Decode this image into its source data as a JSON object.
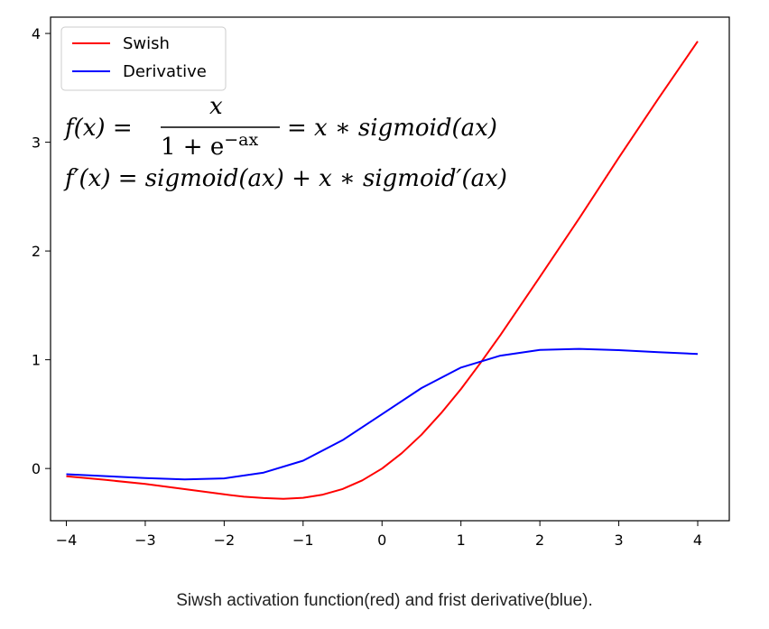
{
  "chart_data": {
    "type": "line",
    "title": "",
    "xlabel": "",
    "ylabel": "",
    "xlim": [
      -4.2,
      4.4
    ],
    "ylim": [
      -0.48,
      4.15
    ],
    "xticks": [
      -4,
      -3,
      -2,
      -1,
      0,
      1,
      2,
      3,
      4
    ],
    "xtick_labels": [
      "−4",
      "−3",
      "−2",
      "−1",
      "0",
      "1",
      "2",
      "3",
      "4"
    ],
    "yticks": [
      0,
      1,
      2,
      3,
      4
    ],
    "ytick_labels": [
      "0",
      "1",
      "2",
      "3",
      "4"
    ],
    "grid": false,
    "legend": "upper-left",
    "series": [
      {
        "name": "Swish",
        "color": "#ff0000",
        "x": [
          -4.0,
          -3.5,
          -3.0,
          -2.5,
          -2.0,
          -1.75,
          -1.5,
          -1.25,
          -1.0,
          -0.75,
          -0.5,
          -0.25,
          0.0,
          0.25,
          0.5,
          0.75,
          1.0,
          1.25,
          1.5,
          2.0,
          2.5,
          3.0,
          3.5,
          4.0
        ],
        "y": [
          -0.072,
          -0.105,
          -0.142,
          -0.19,
          -0.238,
          -0.259,
          -0.272,
          -0.279,
          -0.269,
          -0.24,
          -0.189,
          -0.109,
          0.0,
          0.141,
          0.311,
          0.51,
          0.731,
          0.974,
          1.227,
          1.761,
          2.302,
          2.858,
          3.4,
          3.928
        ]
      },
      {
        "name": "Derivative",
        "color": "#0000ff",
        "x": [
          -4.0,
          -3.5,
          -3.0,
          -2.5,
          -2.0,
          -1.5,
          -1.0,
          -0.5,
          0.0,
          0.5,
          1.0,
          1.5,
          2.0,
          2.5,
          3.0,
          3.5,
          4.0
        ],
        "y": [
          -0.053,
          -0.07,
          -0.088,
          -0.1,
          -0.091,
          -0.038,
          0.072,
          0.26,
          0.5,
          0.74,
          0.928,
          1.038,
          1.091,
          1.1,
          1.088,
          1.07,
          1.053
        ]
      }
    ],
    "annotations": [
      "f(x) = x / (1 + e^(−ax)) = x ∗ sigmoid(ax)",
      "f′(x) = sigmoid(ax) + x ∗ sigmoid′(ax)"
    ]
  },
  "formulas": {
    "line1_lhs": "f(x) =",
    "line1_num": "x",
    "line1_den_base": "1 +  e",
    "line1_den_exp": "−ax",
    "line1_rhs": "= x  ∗ sigmoid(ax)",
    "line2": "f′(x) = sigmoid(ax) + x ∗ sigmoid′(ax)"
  },
  "caption": "Siwsh activation function(red) and frist derivative(blue)."
}
